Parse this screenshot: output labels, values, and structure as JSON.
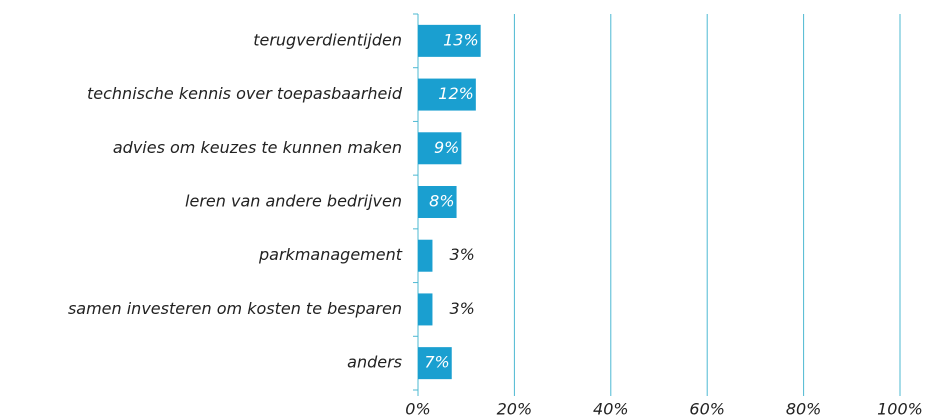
{
  "chart_data": {
    "type": "hbar",
    "categories": [
      "terugverdientijden",
      "technische kennis over toepasbaarheid",
      "advies om keuzes te kunnen maken",
      "leren van andere bedrijven",
      "parkmanagement",
      "samen investeren om kosten te besparen",
      "anders"
    ],
    "values": [
      13,
      12,
      9,
      8,
      3,
      3,
      7
    ],
    "value_labels": [
      "13%",
      "12%",
      "9%",
      "8%",
      "3%",
      "3%",
      "7%"
    ],
    "color": "#1a9fd0",
    "xlim": [
      0,
      100
    ],
    "xticks": [
      {
        "value": 0,
        "label": "0%"
      },
      {
        "value": 20,
        "label": "20%"
      },
      {
        "value": 40,
        "label": "40%"
      },
      {
        "value": 60,
        "label": "60%"
      },
      {
        "value": 80,
        "label": "80%"
      },
      {
        "value": 100,
        "label": "100%"
      }
    ],
    "grid": true
  }
}
